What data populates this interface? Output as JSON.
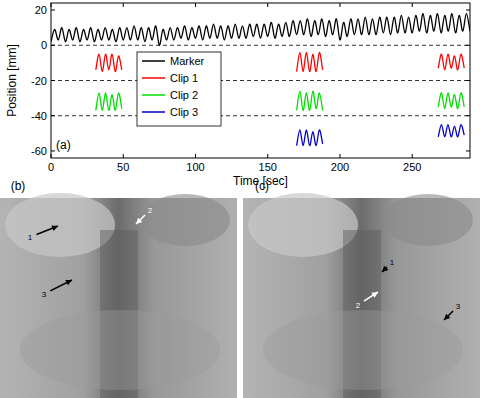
{
  "chart_data": {
    "type": "line",
    "x_label": "Time [sec]",
    "y_label": "Position [mm]",
    "annotations": [
      "(a)"
    ],
    "xlim": [
      0,
      290
    ],
    "ylim": [
      -64,
      24
    ],
    "xticks": [
      0,
      50,
      100,
      150,
      200,
      250
    ],
    "yticks": [
      -60,
      -40,
      -20,
      0,
      20
    ],
    "grid": false,
    "reference_lines": [
      0,
      -20,
      -40
    ],
    "legend": "center",
    "series": [
      {
        "name": "Marker",
        "color": "#000000",
        "x": [
          0,
          2.5,
          5,
          7.5,
          10,
          12.5,
          15,
          17.5,
          20,
          22.5,
          25,
          27.5,
          30,
          32.5,
          35,
          37.5,
          40,
          42.5,
          45,
          47.5,
          50,
          52.5,
          55,
          57.5,
          60,
          62.5,
          65,
          67.5,
          70,
          72.5,
          75,
          77.5,
          80,
          82.5,
          85,
          87.5,
          90,
          92.5,
          95,
          97.5,
          100,
          102.5,
          105,
          107.5,
          110,
          112.5,
          115,
          117.5,
          120,
          122.5,
          125,
          127.5,
          130,
          132.5,
          135,
          137.5,
          140,
          142.5,
          145,
          147.5,
          150,
          152.5,
          155,
          157.5,
          160,
          162.5,
          165,
          167.5,
          170,
          172.5,
          175,
          177.5,
          180,
          182.5,
          185,
          187.5,
          190,
          192.5,
          195,
          197.5,
          200,
          202.5,
          205,
          207.5,
          210,
          212.5,
          215,
          217.5,
          220,
          222.5,
          225,
          227.5,
          230,
          232.5,
          235,
          237.5,
          240,
          242.5,
          245,
          247.5,
          250,
          252.5,
          255,
          257.5,
          260,
          262.5,
          265,
          267.5,
          270,
          272.5,
          275,
          277.5,
          280,
          282.5,
          285,
          287.5,
          290
        ],
        "values": [
          2,
          9,
          3,
          10,
          2,
          9,
          3,
          10,
          2,
          9,
          3,
          10,
          2,
          9,
          3,
          10,
          3,
          9,
          2,
          10,
          3,
          10,
          3,
          11,
          3,
          10,
          2,
          10,
          3,
          11,
          0,
          9,
          3,
          10,
          3,
          10,
          4,
          11,
          3,
          10,
          4,
          11,
          3,
          11,
          4,
          12,
          4,
          11,
          3,
          11,
          4,
          12,
          4,
          11,
          4,
          12,
          5,
          12,
          4,
          12,
          5,
          13,
          4,
          12,
          5,
          13,
          5,
          14,
          6,
          14,
          6,
          15,
          5,
          14,
          6,
          15,
          5,
          14,
          6,
          15,
          3,
          13,
          5,
          15,
          6,
          15,
          6,
          16,
          6,
          15,
          6,
          16,
          7,
          16,
          6,
          16,
          7,
          17,
          7,
          16,
          7,
          17,
          8,
          18,
          7,
          17,
          8,
          18,
          7,
          17,
          8,
          18,
          7,
          17,
          8,
          18,
          8
        ]
      },
      {
        "name": "Clip 1",
        "color": "#ff0000",
        "x": [
          31,
          33.25,
          35.5,
          37.75,
          40,
          42.25,
          44.5,
          46.75,
          49,
          null,
          170,
          172.25,
          174.5,
          176.75,
          179,
          181.25,
          183.5,
          185.75,
          188,
          null,
          268,
          270.25,
          272.5,
          274.75,
          277,
          279.25,
          281.5,
          283.75,
          286
        ],
        "values": [
          -14,
          -5,
          -15,
          -5,
          -14,
          -5,
          -15,
          -6,
          -14,
          null,
          -15,
          -4,
          -15,
          -4,
          -15,
          -5,
          -15,
          -4,
          -14,
          null,
          -13,
          -5,
          -14,
          -5,
          -13,
          -6,
          -14,
          -5,
          -13
        ]
      },
      {
        "name": "Clip 2",
        "color": "#00dd00",
        "x": [
          31,
          33.25,
          35.5,
          37.75,
          40,
          42.25,
          44.5,
          46.75,
          49,
          null,
          170,
          172.25,
          174.5,
          176.75,
          179,
          181.25,
          183.5,
          185.75,
          188,
          null,
          268,
          270.25,
          272.5,
          274.75,
          277,
          279.25,
          281.5,
          283.75,
          286
        ],
        "values": [
          -37,
          -27,
          -37,
          -27,
          -37,
          -28,
          -37,
          -27,
          -36,
          null,
          -37,
          -26,
          -37,
          -27,
          -37,
          -26,
          -36,
          -27,
          -37,
          null,
          -35,
          -27,
          -36,
          -27,
          -35,
          -28,
          -36,
          -27,
          -35
        ]
      },
      {
        "name": "Clip 3",
        "color": "#0000cc",
        "x": [
          170,
          172.25,
          174.5,
          176.75,
          179,
          181.25,
          183.5,
          185.75,
          188,
          null,
          268,
          270.25,
          272.5,
          274.75,
          277,
          279.25,
          281.5,
          283.75,
          286
        ],
        "values": [
          -57,
          -48,
          -57,
          -48,
          -57,
          -49,
          -57,
          -48,
          -56,
          null,
          -52,
          -45,
          -52,
          -45,
          -52,
          -46,
          -52,
          -45,
          -51
        ]
      }
    ]
  },
  "images": [
    {
      "label": "(b)",
      "markers": [
        "1",
        "2",
        "3"
      ]
    },
    {
      "label": "(c)",
      "markers": [
        "1",
        "2",
        "3"
      ]
    }
  ]
}
